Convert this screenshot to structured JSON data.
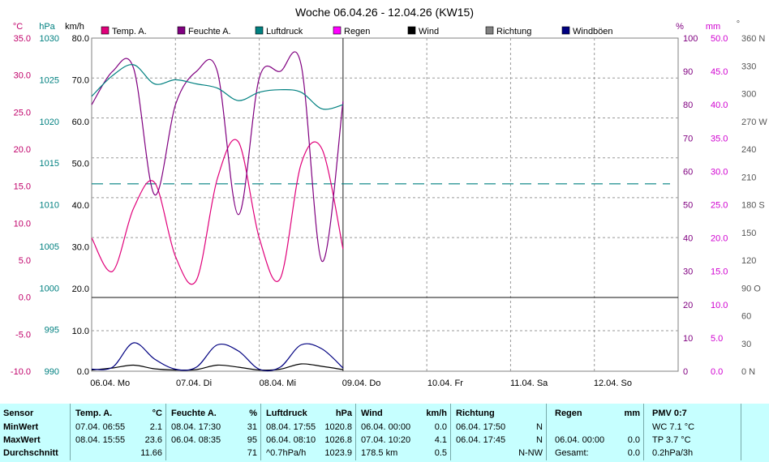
{
  "title": "Woche 06.04.26 - 12.04.26 (KW15)",
  "axes": {
    "temp": {
      "unit": "°C",
      "ticks": [
        "35.0",
        "30.0",
        "25.0",
        "20.0",
        "15.0",
        "10.0",
        "5.0",
        "0.0",
        "-5.0",
        "-10.0"
      ]
    },
    "pressure": {
      "unit": "hPa",
      "ticks": [
        "1030",
        "1025",
        "1020",
        "1015",
        "1010",
        "1005",
        "1000",
        "995",
        "990"
      ]
    },
    "wind": {
      "unit": "km/h",
      "ticks_upper": [
        "80.0",
        "70.0",
        "60.0",
        "50.0",
        "40.0",
        "30.0",
        "20.0"
      ],
      "ticks_lower": [
        "10.0",
        "0.0"
      ]
    },
    "humidity": {
      "unit": "%",
      "ticks": [
        "100",
        "90",
        "80",
        "70",
        "60",
        "50",
        "40",
        "30",
        "20",
        "10",
        "0"
      ]
    },
    "rain": {
      "unit": "mm",
      "ticks": [
        "50.0",
        "45.0",
        "40.0",
        "35.0",
        "30.0",
        "25.0",
        "20.0",
        "15.0",
        "10.0",
        "5.0",
        "0.0"
      ]
    },
    "direction": {
      "unit": "°",
      "ticks": [
        "360 N",
        "330",
        "300",
        "270 W",
        "240",
        "210",
        "180 S",
        "150",
        "120",
        "90  O",
        "60",
        "30",
        "0   N"
      ]
    },
    "x_ticks": [
      "06.04.  Mo",
      "07.04.  Di",
      "08.04.  Mi",
      "09.04.  Do",
      "10.04.  Fr",
      "11.04.  Sa",
      "12.04.  So"
    ]
  },
  "legend": [
    {
      "label": "Temp. A.",
      "color": "#e0007a"
    },
    {
      "label": "Feuchte A.",
      "color": "#800080"
    },
    {
      "label": "Luftdruck",
      "color": "#008080"
    },
    {
      "label": "Regen",
      "color": "#ff00ff"
    },
    {
      "label": "Wind",
      "color": "#000000"
    },
    {
      "label": "Richtung",
      "color": "#808080"
    },
    {
      "label": "Windböen",
      "color": "#000080"
    }
  ],
  "chart_data": {
    "type": "line",
    "title": "Woche 06.04.26 - 12.04.26 (KW15)",
    "x": [
      "06.04. 00:00",
      "06.04. 06:00",
      "06.04. 12:00",
      "06.04. 18:00",
      "07.04. 00:00",
      "07.04. 06:00",
      "07.04. 12:00",
      "07.04. 18:00",
      "08.04. 00:00",
      "08.04. 06:00",
      "08.04. 12:00",
      "08.04. 18:00",
      "09.04. 00:00"
    ],
    "xlim": [
      "06.04.",
      "13.04."
    ],
    "series": [
      {
        "name": "Temp. A.",
        "unit": "°C",
        "values": [
          8.0,
          3.5,
          12.0,
          15.5,
          5.5,
          2.3,
          16.0,
          21.0,
          8.0,
          2.5,
          18.0,
          20.0,
          6.5
        ]
      },
      {
        "name": "Feuchte A.",
        "unit": "%",
        "values": [
          80,
          90,
          91,
          53,
          80,
          90,
          90,
          47,
          88,
          90,
          92,
          33,
          81
        ]
      },
      {
        "name": "Luftdruck",
        "unit": "hPa",
        "values": [
          1023.0,
          1025.5,
          1026.8,
          1024.5,
          1025.0,
          1024.5,
          1024.0,
          1022.5,
          1023.5,
          1023.8,
          1023.5,
          1021.5,
          1022.0
        ]
      },
      {
        "name": "Regen",
        "unit": "mm",
        "values": [
          0,
          0,
          0,
          0,
          0,
          0,
          0,
          0,
          0,
          0,
          0,
          0,
          0
        ]
      },
      {
        "name": "Wind",
        "unit": "km/h",
        "values": [
          0.3,
          0.8,
          1.5,
          0.6,
          0.3,
          0.4,
          1.5,
          1.0,
          0.3,
          0.5,
          1.8,
          1.2,
          0.4
        ]
      },
      {
        "name": "Windböen",
        "unit": "km/h",
        "values": [
          0.5,
          1.0,
          7.0,
          3.0,
          0.5,
          1.0,
          6.5,
          5.0,
          0.5,
          1.0,
          6.5,
          5.5,
          0.8
        ]
      }
    ],
    "reference_line": {
      "value": 1012.5,
      "unit": "hPa"
    },
    "ylim_temp": [
      -10,
      35
    ],
    "ylim_pressure": [
      990,
      1030
    ],
    "ylim_humidity": [
      0,
      100
    ],
    "ylim_rain": [
      0,
      50
    ],
    "ylim_direction": [
      0,
      360
    ],
    "grid": true,
    "legend_position": "top"
  },
  "stats": {
    "sensor": {
      "header": "Sensor",
      "rows": [
        "MinWert",
        "MaxWert",
        "Durchschnitt"
      ]
    },
    "temp": {
      "header": "Temp. A.",
      "unit": "°C",
      "min_time": "07.04.  06:55",
      "min_val": "2.1",
      "max_time": "08.04.  15:55",
      "max_val": "23.6",
      "avg_val": "11.66"
    },
    "humidity": {
      "header": "Feuchte A.",
      "unit": "%",
      "min_time": "08.04.  17:30",
      "min_val": "31",
      "max_time": "06.04.  08:35",
      "max_val": "95",
      "avg_val": "71"
    },
    "pressure": {
      "header": "Luftdruck",
      "unit": "hPa",
      "min_time": "08.04.  17:55",
      "min_val": "1020.8",
      "max_time": "06.04.  08:10",
      "max_val": "1026.8",
      "avg_text": "^0.7hPa/h",
      "avg_val": "1023.9"
    },
    "wind": {
      "header": "Wind",
      "unit": "km/h",
      "min_time": "06.04.  00:00",
      "min_val": "0.0",
      "max_time": "07.04.  10:20",
      "max_val": "4.1",
      "avg_text": "178.5 km",
      "avg_val": "0.5"
    },
    "direction": {
      "header": "Richtung",
      "min_time": "06.04.  17:50",
      "min_val": "N",
      "max_time": "06.04.  17:45",
      "max_val": "N",
      "avg_val": "N-NW"
    },
    "rain": {
      "header": "Regen",
      "unit": "mm",
      "max_time": "06.04.  00:00",
      "max_val": "0.0",
      "avg_text": "Gesamt:",
      "avg_val": "0.0"
    },
    "pmv": {
      "header": "PMV 0:7",
      "line1": "WC 7.1 °C",
      "line2": "TP 3.7 °C",
      "line3": "0.2hPa/3h"
    }
  }
}
